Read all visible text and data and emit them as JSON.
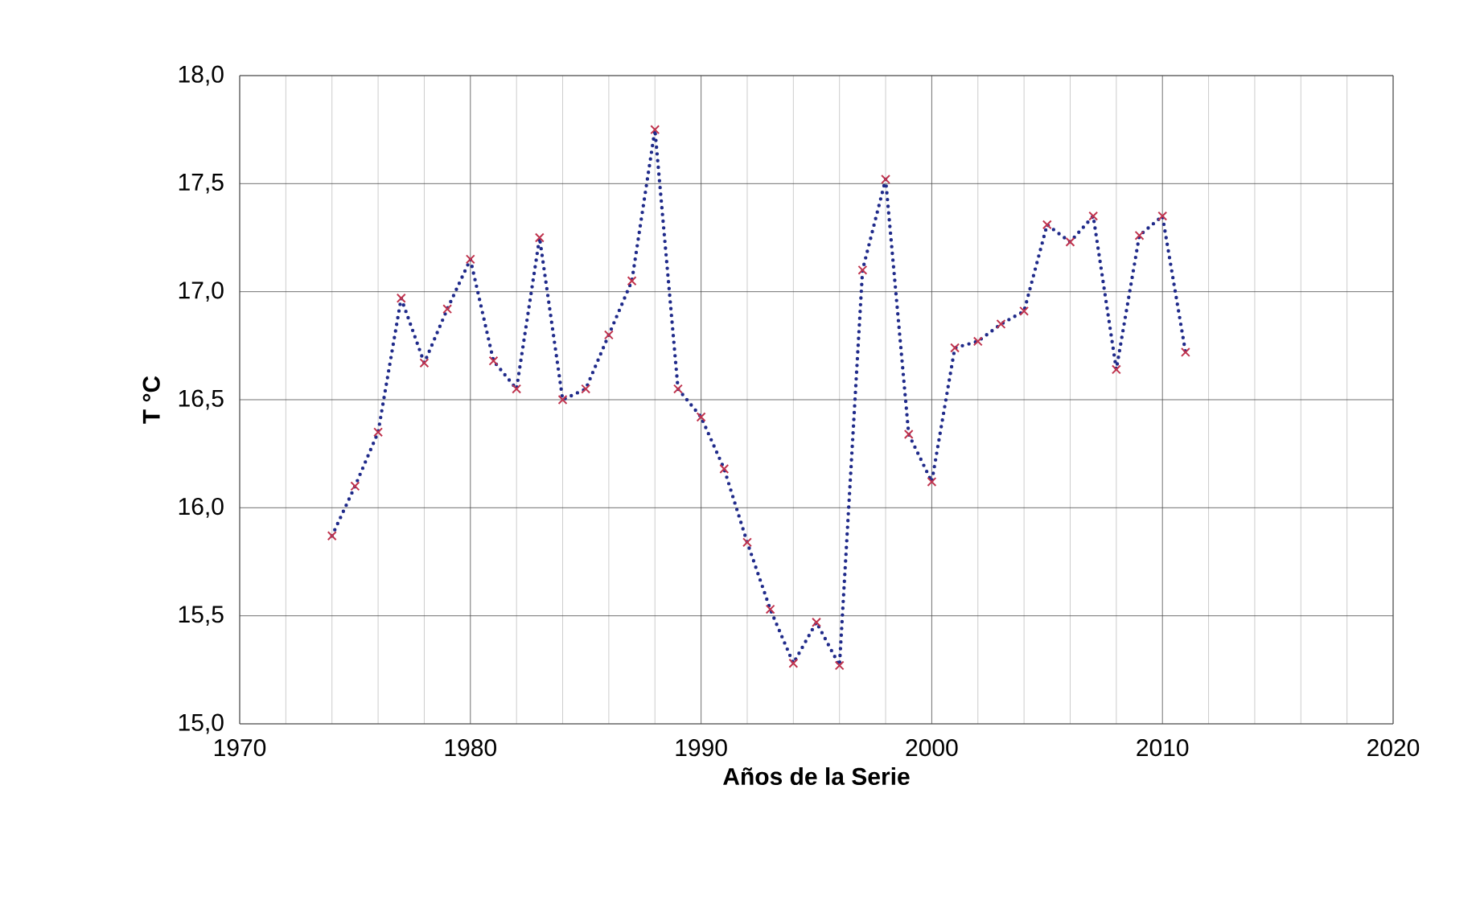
{
  "chart_data": {
    "type": "line",
    "xlabel": "Años de la Serie",
    "ylabel": "T  °C",
    "x": [
      1974,
      1975,
      1976,
      1977,
      1978,
      1979,
      1980,
      1981,
      1982,
      1983,
      1984,
      1985,
      1986,
      1987,
      1988,
      1989,
      1990,
      1991,
      1992,
      1993,
      1994,
      1995,
      1996,
      1997,
      1998,
      1999,
      2000,
      2001,
      2002,
      2003,
      2004,
      2005,
      2006,
      2007,
      2008,
      2009,
      2010,
      2011
    ],
    "series": [
      {
        "color": "#1f2a8a",
        "line_style": "dotted",
        "marker": "none",
        "values": [
          15.87,
          16.1,
          16.35,
          16.97,
          16.67,
          16.92,
          17.15,
          16.68,
          16.55,
          17.25,
          16.5,
          16.55,
          16.8,
          17.05,
          17.75,
          16.55,
          16.42,
          16.18,
          15.84,
          15.53,
          15.28,
          15.47,
          15.27,
          17.1,
          17.52,
          16.34,
          16.12,
          16.74,
          16.77,
          16.85,
          16.91,
          17.31,
          17.23,
          17.35,
          16.64,
          17.26,
          17.35,
          16.72
        ]
      },
      {
        "type": "scatter",
        "color": "#c0334d",
        "marker": "cross",
        "values": [
          15.87,
          16.1,
          16.35,
          16.97,
          16.67,
          16.92,
          17.15,
          16.68,
          16.55,
          17.25,
          16.5,
          16.55,
          16.8,
          17.05,
          17.75,
          16.55,
          16.42,
          16.18,
          15.84,
          15.53,
          15.28,
          15.47,
          15.27,
          17.1,
          17.52,
          16.34,
          16.12,
          16.74,
          16.77,
          16.85,
          16.91,
          17.31,
          17.23,
          17.35,
          16.64,
          17.26,
          17.35,
          16.72
        ]
      }
    ],
    "xlim": [
      1970,
      2020
    ],
    "xticks": [
      1970,
      1980,
      1990,
      2000,
      2010,
      2020
    ],
    "ylim": [
      15.0,
      18.0
    ],
    "yticks": [
      {
        "value": 15.0,
        "label": "15,0"
      },
      {
        "value": 15.5,
        "label": "15,5"
      },
      {
        "value": 16.0,
        "label": "16,0"
      },
      {
        "value": 16.5,
        "label": "16,5"
      },
      {
        "value": 17.0,
        "label": "17,0"
      },
      {
        "value": 17.5,
        "label": "17,5"
      },
      {
        "value": 18.0,
        "label": "18,0"
      }
    ],
    "grid": true
  }
}
